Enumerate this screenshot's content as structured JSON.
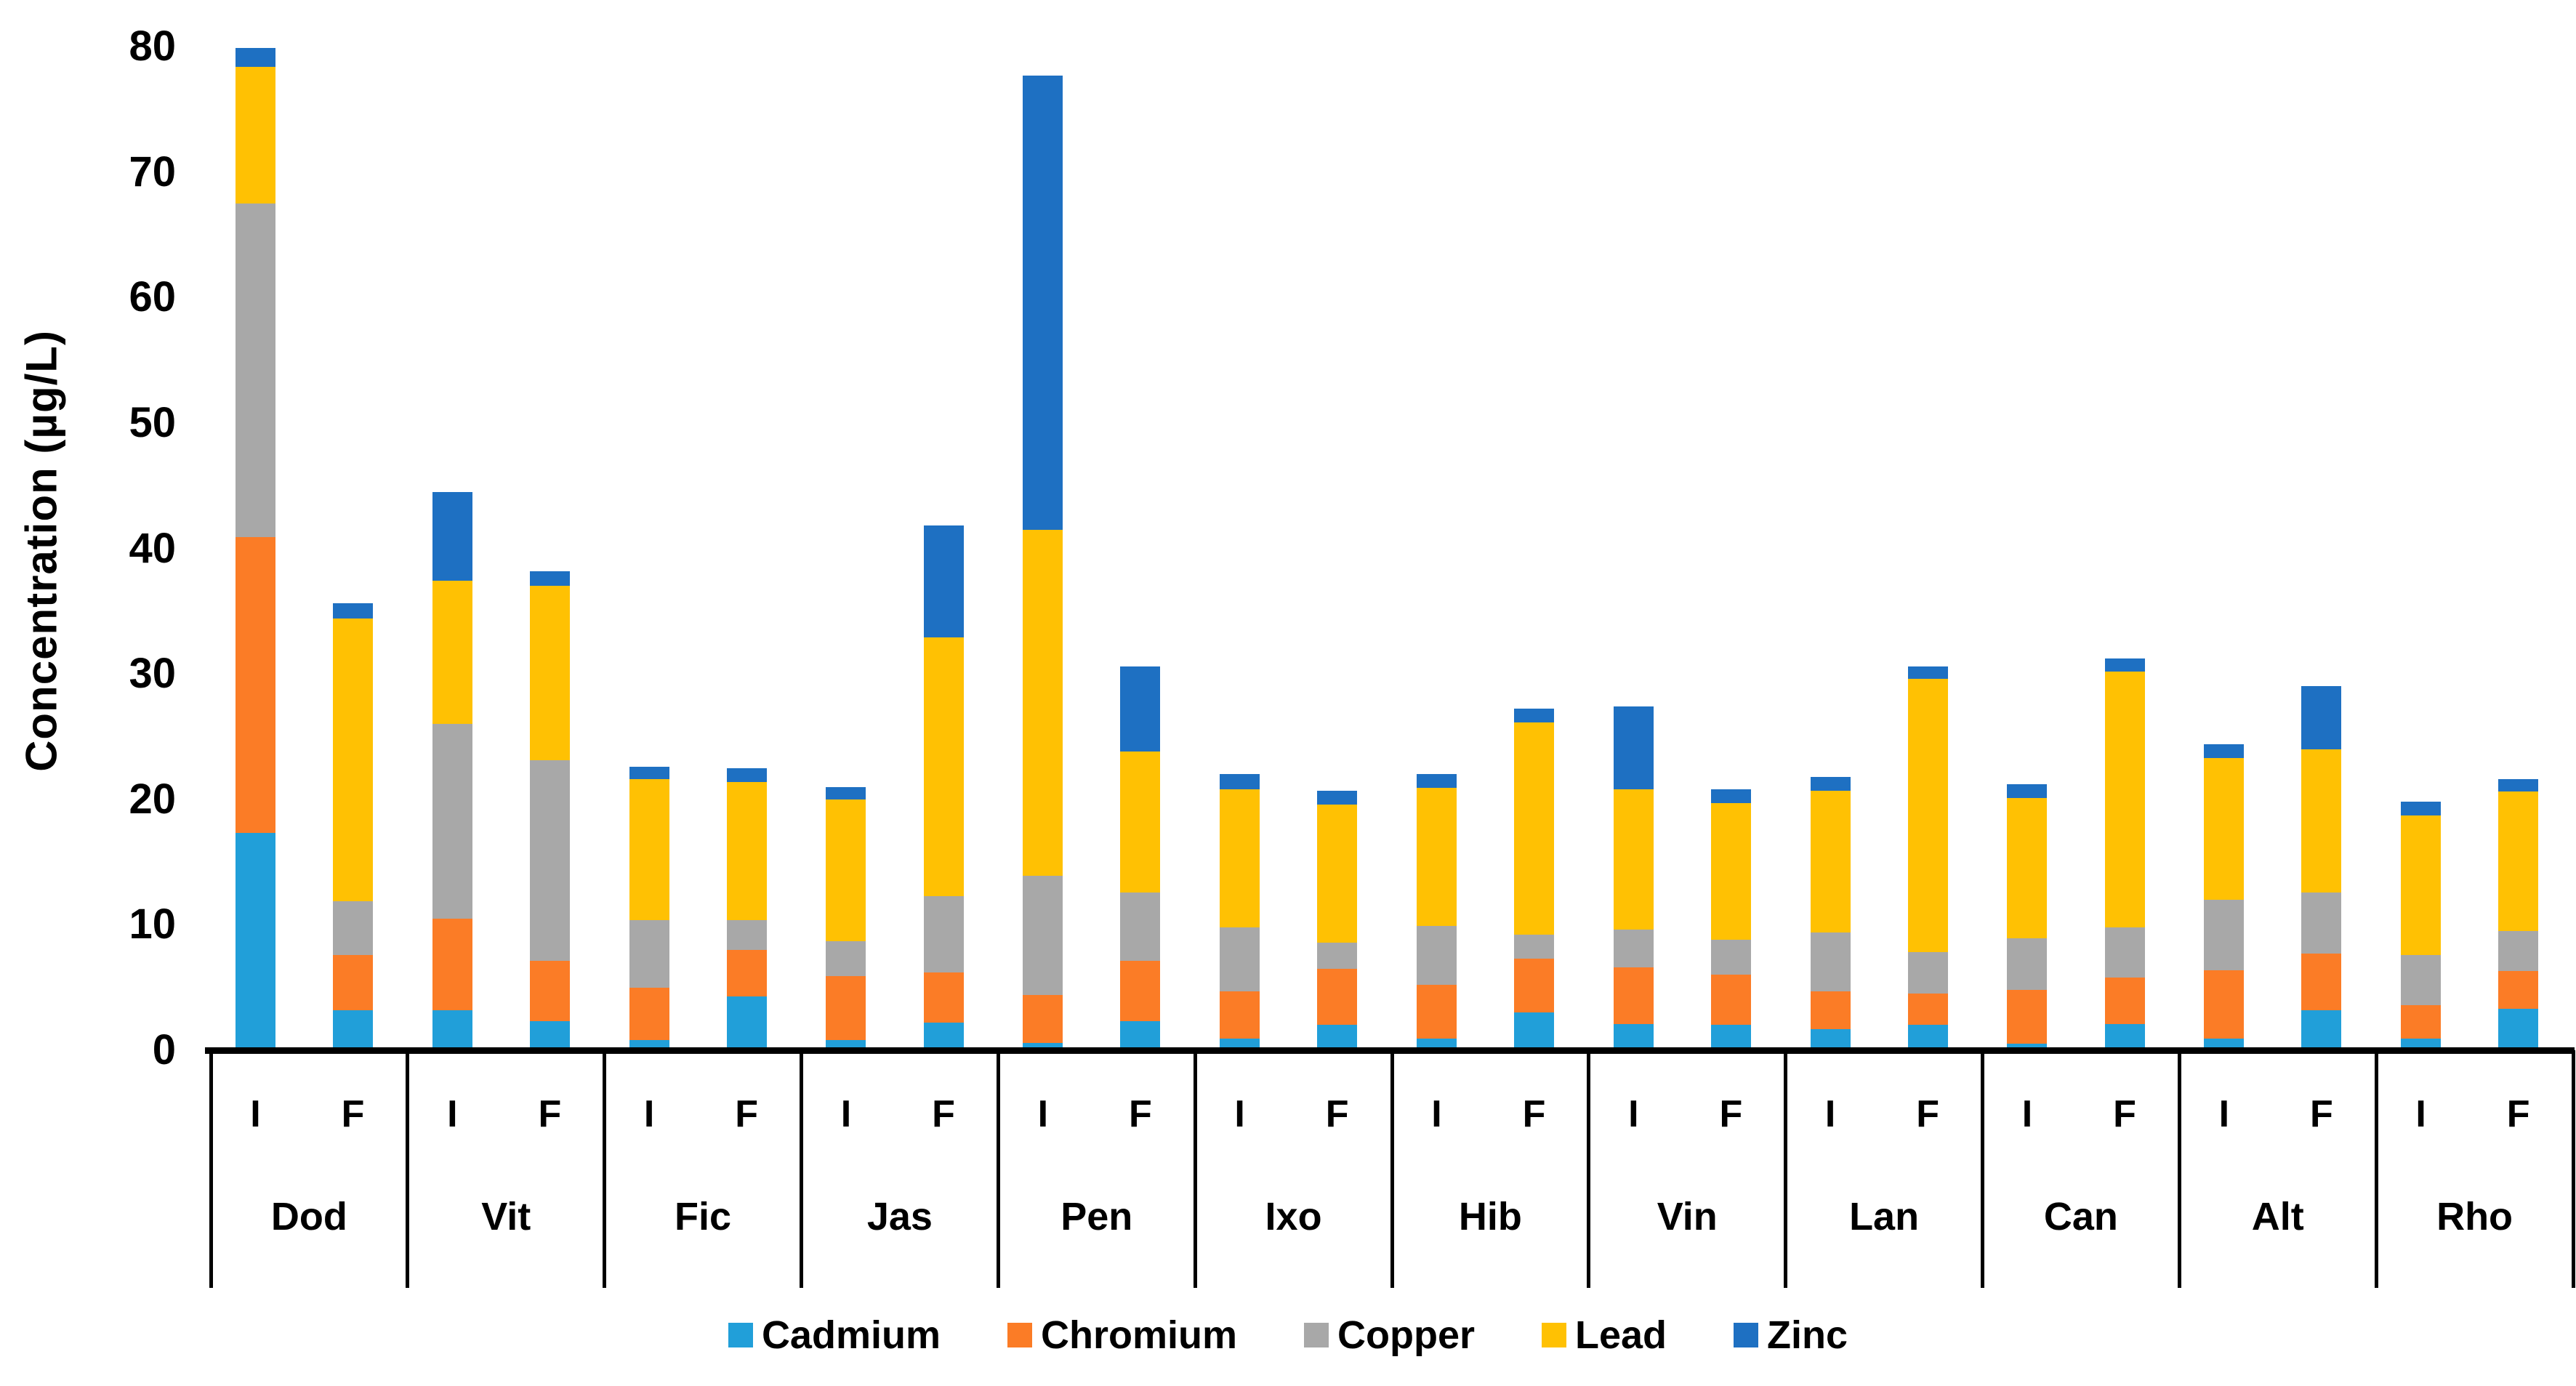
{
  "y_axis": {
    "title": "Concentration (µg/L)"
  },
  "chart_data": {
    "type": "bar",
    "stacked": true,
    "title": "",
    "xlabel": "",
    "ylabel": "Concentration (µg/L)",
    "ylim": [
      0,
      80
    ],
    "y_ticks": [
      0,
      10,
      20,
      30,
      40,
      50,
      60,
      70,
      80
    ],
    "grid": false,
    "legend_position": "bottom",
    "bar_sublabels": [
      "I",
      "F"
    ],
    "series": [
      {
        "name": "Cadmium",
        "color": "#219FD9"
      },
      {
        "name": "Chromium",
        "color": "#FB7C26"
      },
      {
        "name": "Copper",
        "color": "#A8A8A8"
      },
      {
        "name": "Lead",
        "color": "#FFC103"
      },
      {
        "name": "Zinc",
        "color": "#1E70C2"
      }
    ],
    "groups": [
      {
        "label": "Dod",
        "bars": [
          {
            "label": "I",
            "values": [
              17.3,
              23.6,
              26.6,
              10.9,
              1.5
            ]
          },
          {
            "label": "F",
            "values": [
              3.2,
              4.4,
              4.3,
              22.5,
              1.2
            ]
          }
        ]
      },
      {
        "label": "Vit",
        "bars": [
          {
            "label": "I",
            "values": [
              3.2,
              7.3,
              15.5,
              11.4,
              7.1
            ]
          },
          {
            "label": "F",
            "values": [
              2.3,
              4.8,
              16.0,
              13.9,
              1.2
            ]
          }
        ]
      },
      {
        "label": "Fic",
        "bars": [
          {
            "label": "I",
            "values": [
              0.8,
              4.2,
              5.4,
              11.2,
              1.0
            ]
          },
          {
            "label": "F",
            "values": [
              4.3,
              3.7,
              2.4,
              11.0,
              1.1
            ]
          }
        ]
      },
      {
        "label": "Jas",
        "bars": [
          {
            "label": "I",
            "values": [
              0.8,
              5.1,
              2.8,
              11.3,
              1.0
            ]
          },
          {
            "label": "F",
            "values": [
              2.2,
              4.0,
              6.1,
              20.6,
              8.9
            ]
          }
        ]
      },
      {
        "label": "Pen",
        "bars": [
          {
            "label": "I",
            "values": [
              0.6,
              3.8,
              9.5,
              27.6,
              36.2
            ]
          },
          {
            "label": "F",
            "values": [
              2.3,
              4.8,
              5.5,
              11.2,
              6.8
            ]
          }
        ]
      },
      {
        "label": "Ixo",
        "bars": [
          {
            "label": "I",
            "values": [
              0.9,
              3.8,
              5.1,
              11.0,
              1.2
            ]
          },
          {
            "label": "F",
            "values": [
              2.0,
              4.5,
              2.1,
              11.0,
              1.1
            ]
          }
        ]
      },
      {
        "label": "Hib",
        "bars": [
          {
            "label": "I",
            "values": [
              0.9,
              4.3,
              4.7,
              11.0,
              1.1
            ]
          },
          {
            "label": "F",
            "values": [
              3.0,
              4.3,
              1.9,
              16.9,
              1.1
            ]
          }
        ]
      },
      {
        "label": "Vin",
        "bars": [
          {
            "label": "I",
            "values": [
              2.1,
              4.5,
              3.0,
              11.2,
              6.6
            ]
          },
          {
            "label": "F",
            "values": [
              2.0,
              4.0,
              2.8,
              10.9,
              1.1
            ]
          }
        ]
      },
      {
        "label": "Lan",
        "bars": [
          {
            "label": "I",
            "values": [
              1.7,
              3.0,
              4.7,
              11.3,
              1.1
            ]
          },
          {
            "label": "F",
            "values": [
              2.0,
              2.5,
              3.3,
              21.8,
              1.0
            ]
          }
        ]
      },
      {
        "label": "Can",
        "bars": [
          {
            "label": "I",
            "values": [
              0.5,
              4.3,
              4.1,
              11.2,
              1.1
            ]
          },
          {
            "label": "F",
            "values": [
              2.1,
              3.7,
              4.0,
              20.4,
              1.0
            ]
          }
        ]
      },
      {
        "label": "Alt",
        "bars": [
          {
            "label": "I",
            "values": [
              0.9,
              5.5,
              5.6,
              11.3,
              1.1
            ]
          },
          {
            "label": "F",
            "values": [
              3.2,
              4.5,
              4.9,
              11.4,
              5.0
            ]
          }
        ]
      },
      {
        "label": "Rho",
        "bars": [
          {
            "label": "I",
            "values": [
              0.9,
              2.7,
              4.0,
              11.1,
              1.1
            ]
          },
          {
            "label": "F",
            "values": [
              3.3,
              3.0,
              3.2,
              11.1,
              1.0
            ]
          }
        ]
      }
    ]
  }
}
